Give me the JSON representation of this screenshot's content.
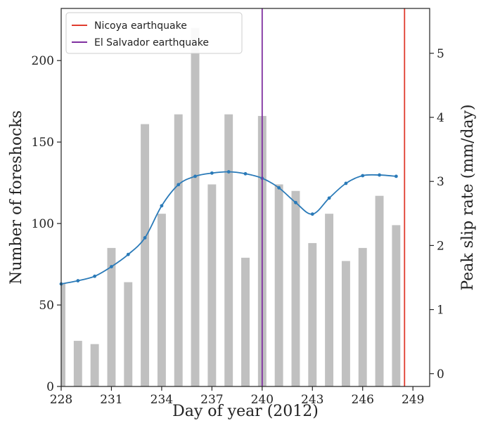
{
  "chart_data": {
    "type": "bar",
    "xlabel": "Day of year (2012)",
    "ylabel_left": "Number of foreshocks",
    "ylabel_right": "Peak slip rate (mm/day)",
    "xlim": [
      228,
      250
    ],
    "ylim_left": [
      0,
      232
    ],
    "ylim_right": [
      -0.2,
      5.7
    ],
    "x_ticks": [
      228,
      231,
      234,
      237,
      240,
      243,
      246,
      249
    ],
    "y_ticks_left": [
      0,
      50,
      100,
      150,
      200
    ],
    "y_ticks_right": [
      0,
      1,
      2,
      3,
      4,
      5
    ],
    "bars": {
      "name": "",
      "color": "#c0c0c0",
      "width": 0.5,
      "x": [
        228,
        229,
        230,
        231,
        232,
        233,
        234,
        235,
        236,
        237,
        238,
        239,
        240,
        241,
        242,
        243,
        244,
        245,
        246,
        247,
        248
      ],
      "values": [
        63,
        28,
        26,
        85,
        64,
        161,
        106,
        167,
        220,
        124,
        167,
        79,
        166,
        124,
        120,
        88,
        106,
        77,
        85,
        117,
        99
      ]
    },
    "line": {
      "name": "",
      "color": "#2a7ab8",
      "axis": "right",
      "x": [
        228,
        229,
        230,
        231,
        232,
        233,
        234,
        235,
        236,
        237,
        238,
        239,
        240,
        241,
        242,
        243,
        244,
        245,
        246,
        247,
        248
      ],
      "values": [
        1.4,
        1.45,
        1.52,
        1.67,
        1.86,
        2.12,
        2.62,
        2.95,
        3.08,
        3.13,
        3.15,
        3.12,
        3.05,
        2.9,
        2.67,
        2.49,
        2.74,
        2.97,
        3.09,
        3.1,
        3.08
      ]
    },
    "vlines": [
      {
        "name": "Nicoya earthquake",
        "x": 248.5,
        "color": "#e03c2e"
      },
      {
        "name": "El Salvador earthquake",
        "x": 240,
        "color": "#7f2fa0"
      }
    ],
    "legend_position": "top-left",
    "grid": false
  }
}
